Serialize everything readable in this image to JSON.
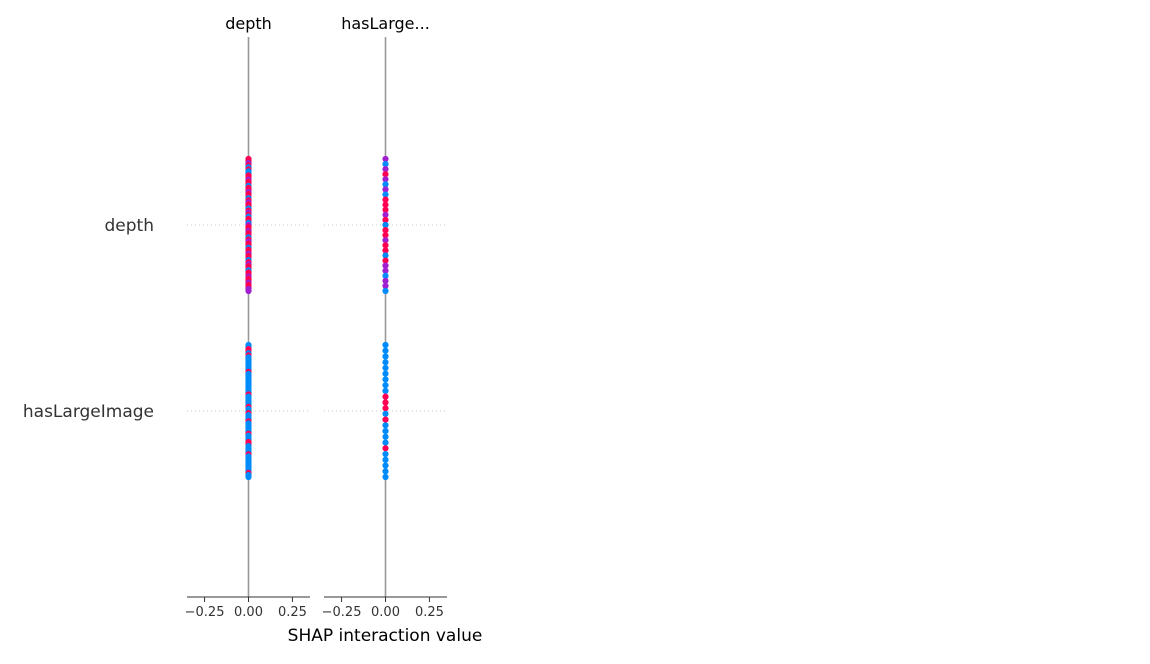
{
  "chart_data": {
    "type": "scatter",
    "subtype": "shap-interaction-summary",
    "xlabel": "SHAP interaction value",
    "xlim": [
      -0.35,
      0.35
    ],
    "xticks": [
      -0.25,
      0.0,
      0.25
    ],
    "xtick_labels": [
      "−0.25",
      "0.00",
      "0.25"
    ],
    "row_labels": [
      "depth",
      "hasLargeImage"
    ],
    "panels": [
      {
        "title": "depth",
        "rows": [
          {
            "feature": "depth",
            "interaction_value": 0.0,
            "points": "r r p r b r b b r r p r r b r r p r r b r p r r b r p r b r r b p r r p r r b r p r r b r r p r r b r p r r b r r p r r p r r p p"
          },
          {
            "feature": "hasLargeImage",
            "interaction_value": 0.0,
            "points": "b b r r b r b b b b b b b r b b b b b b b b b b r b b b b b r b b r b b b r b b b b b r b b b r r b b b b r b b b b b b b b r b b"
          }
        ]
      },
      {
        "title": "hasLarge...",
        "rows": [
          {
            "feature": "depth",
            "interaction_value": 0.0,
            "points": "p b p r p b p b r r r p r b r r p r r b r p p b p p b"
          },
          {
            "feature": "hasLargeImage",
            "interaction_value": 0.0,
            "points": "b b b b b b b b b r r r b r b b b b r b b b b b"
          }
        ]
      }
    ],
    "colors": {
      "high": "#ff0052",
      "mid": "#a020d0",
      "low": "#008bfb",
      "zero_line": "#999999",
      "grid": "#cccccc",
      "axis": "#333333",
      "text": "#333333"
    }
  }
}
